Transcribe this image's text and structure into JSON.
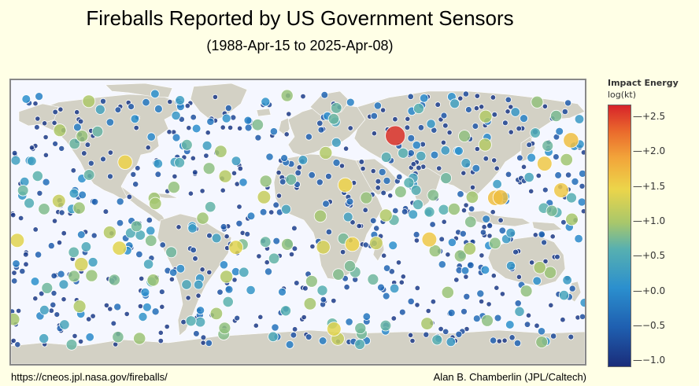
{
  "header": {
    "title": "Fireballs Reported by US Government Sensors",
    "subtitle": "(1988-Apr-15 to 2025-Apr-08)"
  },
  "legend": {
    "title": "Impact Energy",
    "subtitle": "log(kt)",
    "ticks": [
      "+2.5",
      "+2.0",
      "+1.5",
      "+1.0",
      "+0.5",
      "+0.0",
      "−0.5",
      "−1.0"
    ],
    "range": [
      -1.1,
      2.7
    ],
    "colors": [
      "#1a2d7a",
      "#1f5fb0",
      "#2b8fce",
      "#57b0b0",
      "#a8c76b",
      "#ecd54a",
      "#f2a43a",
      "#ea6a2c",
      "#d7232a"
    ]
  },
  "footer": {
    "source_url": "https://cneos.jpl.nasa.gov/fireballs/",
    "credit": "Alan B. Chamberlin (JPL/Caltech)"
  },
  "map": {
    "projection": "equirectangular",
    "land_color": "#d3d1c5",
    "ocean_color": "#f5f7ff",
    "highlight_events": [
      {
        "lon": 61.1,
        "lat": 54.8,
        "energy": 2.6
      },
      {
        "lon": 123.8,
        "lat": 15.3,
        "energy": 1.5
      },
      {
        "lon": 127.1,
        "lat": 15.6,
        "energy": 1.5
      },
      {
        "lon": 171.3,
        "lat": 51.9,
        "energy": 1.5
      },
      {
        "lon": 165.2,
        "lat": 20.2,
        "energy": 1.4
      },
      {
        "lon": 154.7,
        "lat": 37.1,
        "energy": 1.4
      },
      {
        "lon": 82.4,
        "lat": -11.0,
        "energy": 1.4
      },
      {
        "lon": 29.7,
        "lat": 23.5,
        "energy": 1.3
      },
      {
        "lon": 34.1,
        "lat": -14.0,
        "energy": 1.3
      },
      {
        "lon": -108.4,
        "lat": 38.0,
        "energy": 1.3
      },
      {
        "lon": -176.1,
        "lat": -11.6,
        "energy": 1.2
      },
      {
        "lon": -112.0,
        "lat": -16.5,
        "energy": 1.2
      },
      {
        "lon": 22.6,
        "lat": -67.8,
        "energy": 1.2
      },
      {
        "lon": -38.9,
        "lat": -16.0,
        "energy": 1.2
      },
      {
        "lon": -135.9,
        "lat": -26.8,
        "energy": 1.1
      },
      {
        "lon": 15.9,
        "lat": -15.9,
        "energy": 1.1
      },
      {
        "lon": 49.1,
        "lat": -13.3,
        "energy": 1.0
      },
      {
        "lon": 25.0,
        "lat": -74.0,
        "energy": 1.0
      },
      {
        "lon": -150.0,
        "lat": 13.4,
        "energy": 1.0
      },
      {
        "lon": -21.3,
        "lat": 15.8,
        "energy": 1.0
      }
    ],
    "event_count_note": "Each circle is one reported fireball; size and color scale with impact energy."
  }
}
